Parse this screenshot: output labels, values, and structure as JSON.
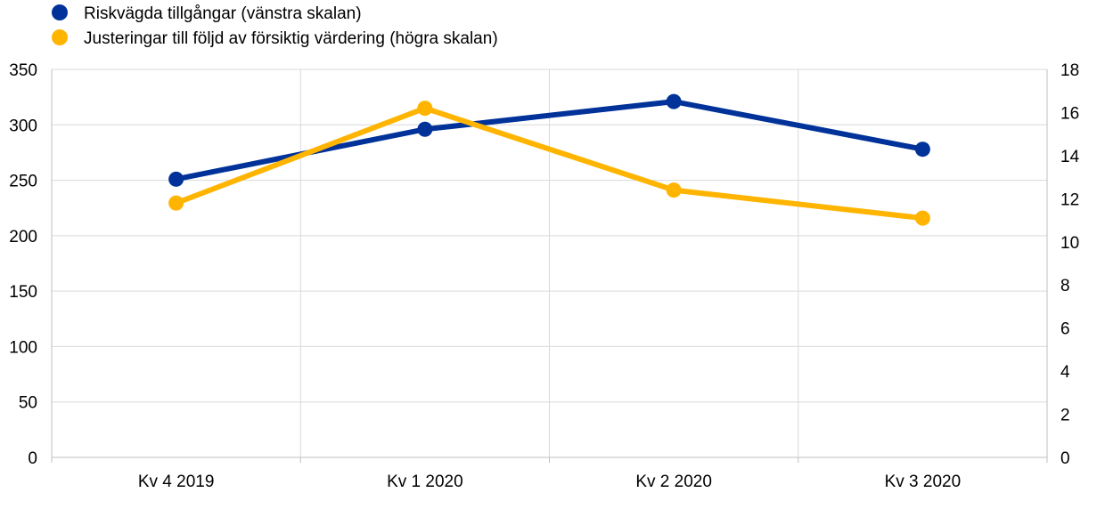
{
  "chart_data": {
    "type": "line",
    "categories": [
      "Kv 4 2019",
      "Kv 1 2020",
      "Kv 2 2020",
      "Kv 3 2020"
    ],
    "series": [
      {
        "name": "Riskvägda tillgångar (vänstra skalan)",
        "axis": "left",
        "color": "#003299",
        "values": [
          251,
          296,
          321,
          278
        ]
      },
      {
        "name": "Justeringar till följd av försiktig värdering (högra skalan)",
        "axis": "right",
        "color": "#FFB400",
        "values": [
          11.8,
          16.2,
          12.4,
          11.1
        ]
      }
    ],
    "y_left": {
      "min": 0,
      "max": 350,
      "step": 50
    },
    "y_right": {
      "min": 0,
      "max": 18,
      "step": 2
    },
    "grid": true,
    "legend_position": "top-left"
  }
}
